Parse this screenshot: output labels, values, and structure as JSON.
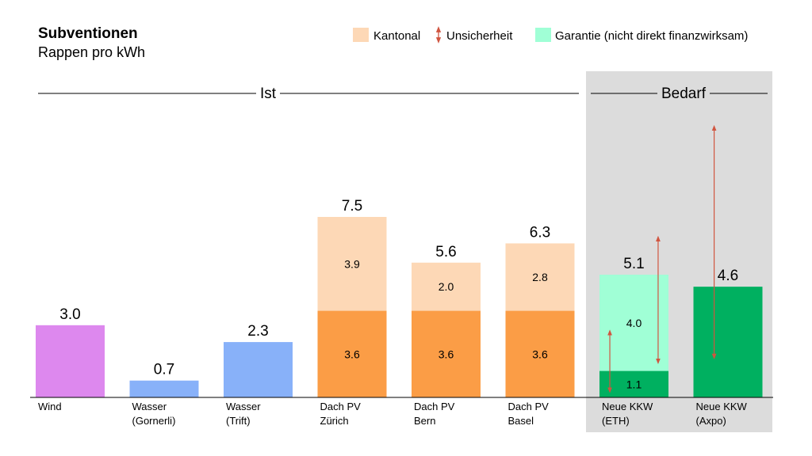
{
  "header": {
    "title": "Subventionen",
    "subtitle": "Rappen pro kWh"
  },
  "legend": {
    "kantonal": "Kantonal",
    "unsicherheit": "Unsicherheit",
    "garantie": "Garantie (nicht direkt finanzwirksam)"
  },
  "groups": {
    "ist": "Ist",
    "bedarf": "Bedarf"
  },
  "colors": {
    "wind": "#dd88ee",
    "wasser": "#88b1f9",
    "pv_base": "#fb9d46",
    "kantonal": "#fdd8b6",
    "garantie": "#a0ffd6",
    "kkw_base": "#00b060",
    "unsicherheit": "#d05540",
    "bedarf_bg": "#dcdcdc"
  },
  "chart_data": {
    "type": "bar",
    "stacked": true,
    "title": "Subventionen",
    "subtitle": "Rappen pro kWh",
    "ylim": [
      0,
      9.2
    ],
    "grid": false,
    "legend_position": "top-right",
    "categories": [
      [
        "Wind"
      ],
      [
        "Wasser",
        "(Gornerli)"
      ],
      [
        "Wasser",
        "(Trift)"
      ],
      [
        "Dach PV",
        "Zürich"
      ],
      [
        "Dach PV",
        "Bern"
      ],
      [
        "Dach PV",
        "Basel"
      ],
      [
        "Neue KKW",
        "(ETH)"
      ],
      [
        "Neue KKW",
        "(Axpo)"
      ]
    ],
    "bars": [
      {
        "segments": [
          {
            "value": 3.0,
            "color_key": "wind",
            "label": ""
          }
        ],
        "total_label": "3.0"
      },
      {
        "segments": [
          {
            "value": 0.7,
            "color_key": "wasser",
            "label": ""
          }
        ],
        "total_label": "0.7"
      },
      {
        "segments": [
          {
            "value": 2.3,
            "color_key": "wasser",
            "label": ""
          }
        ],
        "total_label": "2.3"
      },
      {
        "segments": [
          {
            "value": 3.6,
            "color_key": "pv_base",
            "label": "3.6"
          },
          {
            "value": 3.9,
            "color_key": "kantonal",
            "label": "3.9"
          }
        ],
        "total_label": "7.5"
      },
      {
        "segments": [
          {
            "value": 3.6,
            "color_key": "pv_base",
            "label": "3.6"
          },
          {
            "value": 2.0,
            "color_key": "kantonal",
            "label": "2.0"
          }
        ],
        "total_label": "5.6"
      },
      {
        "segments": [
          {
            "value": 3.6,
            "color_key": "pv_base",
            "label": "3.6"
          },
          {
            "value": 2.8,
            "color_key": "kantonal",
            "label": "2.8"
          }
        ],
        "total_label": "6.3"
      },
      {
        "segments": [
          {
            "value": 1.1,
            "color_key": "kkw_base",
            "label": "1.1"
          },
          {
            "value": 4.0,
            "color_key": "garantie",
            "label": "4.0"
          }
        ],
        "total_label": "5.1"
      },
      {
        "segments": [
          {
            "value": 4.6,
            "color_key": "kkw_base",
            "label": ""
          }
        ],
        "total_label": "4.6"
      }
    ],
    "uncertainty": [
      {
        "bar": 6,
        "low": 0.3,
        "high": 2.7
      },
      {
        "bar": 6,
        "low": 1.5,
        "high": 6.6
      },
      {
        "bar": 7,
        "low": 1.7,
        "high": 11.2
      }
    ]
  }
}
